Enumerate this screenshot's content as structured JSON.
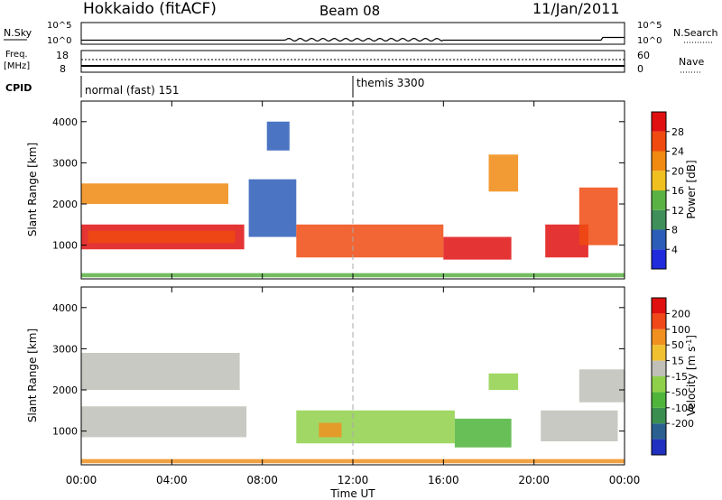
{
  "header": {
    "site": "Hokkaido (fitACF)",
    "beam": "Beam 08",
    "date": "11/Jan/2011"
  },
  "strips": {
    "nsky_label": "N.Sky",
    "nsky_ticks": [
      "10^5",
      "10^0"
    ],
    "nsky_right_ticks": [
      "10^5",
      "10^0"
    ],
    "nsearch_label": "N.Search",
    "freq_label_line1": "Freq.",
    "freq_label_line2": "[MHz]",
    "freq_ticks": [
      "18",
      "8"
    ],
    "nave_ticks": [
      "60",
      "0"
    ],
    "nave_label": "Nave",
    "cpid_label": "CPID",
    "cpid_segments": [
      {
        "name": "normal (fast) 151",
        "start_hour": 0
      },
      {
        "name": "themis 3300",
        "start_hour": 12
      }
    ]
  },
  "chart_data": [
    {
      "type": "heatmap",
      "title": "Power",
      "ylabel": "Slant Range [km]",
      "xlabel": "Time UT",
      "x_range_hours": [
        0,
        24
      ],
      "ylim": [
        180,
        4500
      ],
      "y_ticks": [
        1000,
        2000,
        3000,
        4000
      ],
      "colorbar_label": "Power [dB]",
      "colorbar_ticks": [
        4,
        8,
        12,
        16,
        20,
        24,
        28
      ],
      "colors": [
        "#1f2bdc",
        "#2c5db8",
        "#3f8f5a",
        "#5bb244",
        "#f0c020",
        "#f08a10",
        "#f04a10",
        "#e01010"
      ]
    },
    {
      "type": "heatmap",
      "title": "Velocity",
      "ylabel": "Slant Range [km]",
      "xlabel": "Time UT",
      "x_range_hours": [
        0,
        24
      ],
      "ylim": [
        180,
        4500
      ],
      "y_ticks": [
        1000,
        2000,
        3000,
        4000
      ],
      "colorbar_label": "Velocity [m s-1]",
      "colorbar_ticks": [
        200,
        100,
        50,
        15,
        -15,
        -50,
        -100,
        -200
      ],
      "colors": [
        "#2030c0",
        "#2a6090",
        "#3a8f50",
        "#4fb43a",
        "#8fd04a",
        "#c0c0b8",
        "#f0c030",
        "#f09020",
        "#f04818",
        "#e01010"
      ]
    }
  ],
  "x_tick_labels": [
    "00:00",
    "04:00",
    "08:00",
    "12:00",
    "16:00",
    "20:00",
    "00:00"
  ],
  "x_axis_label": "Time UT",
  "colorbar_power_title": "Power [dB]",
  "colorbar_velocity_title": "Velocity [m s",
  "colorbar_velocity_unit_sup": "-1",
  "colorbar_velocity_close": "]"
}
